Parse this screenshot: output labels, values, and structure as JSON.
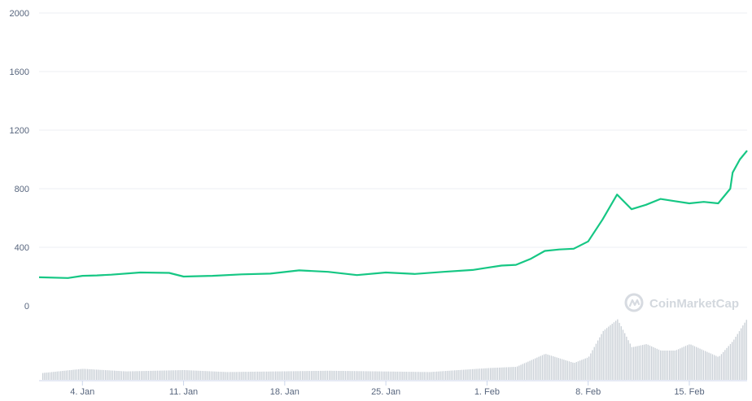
{
  "chart_data": {
    "type": "line",
    "x_unit": "date",
    "x_start": "2021-01-01",
    "x_end": "2021-02-19",
    "ylim": [
      0,
      2000
    ],
    "y_ticks": [
      "0",
      "400",
      "800",
      "1200",
      "1600",
      "2000"
    ],
    "x_ticks": [
      "4. Jan",
      "11. Jan",
      "18. Jan",
      "25. Jan",
      "1. Feb",
      "8. Feb",
      "15. Feb"
    ],
    "grid": true,
    "line_color": "#16c784",
    "volume_color": "#c9cfd6",
    "series": [
      {
        "values": [
          {
            "x": "2021-01-01",
            "y": 195
          },
          {
            "x": "2021-01-03",
            "y": 190
          },
          {
            "x": "2021-01-04",
            "y": 205
          },
          {
            "x": "2021-01-05",
            "y": 208
          },
          {
            "x": "2021-01-06",
            "y": 213
          },
          {
            "x": "2021-01-08",
            "y": 228
          },
          {
            "x": "2021-01-10",
            "y": 225
          },
          {
            "x": "2021-01-11",
            "y": 200
          },
          {
            "x": "2021-01-13",
            "y": 205
          },
          {
            "x": "2021-01-15",
            "y": 215
          },
          {
            "x": "2021-01-17",
            "y": 220
          },
          {
            "x": "2021-01-19",
            "y": 242
          },
          {
            "x": "2021-01-21",
            "y": 232
          },
          {
            "x": "2021-01-23",
            "y": 210
          },
          {
            "x": "2021-01-25",
            "y": 228
          },
          {
            "x": "2021-01-27",
            "y": 218
          },
          {
            "x": "2021-01-29",
            "y": 232
          },
          {
            "x": "2021-01-31",
            "y": 245
          },
          {
            "x": "2021-02-01",
            "y": 260
          },
          {
            "x": "2021-02-02",
            "y": 275
          },
          {
            "x": "2021-02-03",
            "y": 280
          },
          {
            "x": "2021-02-04",
            "y": 320
          },
          {
            "x": "2021-02-05",
            "y": 375
          },
          {
            "x": "2021-02-06",
            "y": 385
          },
          {
            "x": "2021-02-07",
            "y": 390
          },
          {
            "x": "2021-02-08",
            "y": 440
          },
          {
            "x": "2021-02-09",
            "y": 590
          },
          {
            "x": "2021-02-10",
            "y": 760
          },
          {
            "x": "2021-02-11",
            "y": 660
          },
          {
            "x": "2021-02-12",
            "y": 690
          },
          {
            "x": "2021-02-13",
            "y": 730
          },
          {
            "x": "2021-02-14",
            "y": 715
          },
          {
            "x": "2021-02-15",
            "y": 700
          },
          {
            "x": "2021-02-16",
            "y": 710
          },
          {
            "x": "2021-02-17",
            "y": 700
          },
          {
            "x": "2021-02-17T20:00",
            "y": 800
          },
          {
            "x": "2021-02-18",
            "y": 910
          },
          {
            "x": "2021-02-18T12:00",
            "y": 1000
          },
          {
            "x": "2021-02-19",
            "y": 1060
          }
        ]
      }
    ],
    "volume": [
      {
        "x": "2021-01-01",
        "v": 0.1
      },
      {
        "x": "2021-01-04",
        "v": 0.17
      },
      {
        "x": "2021-01-07",
        "v": 0.13
      },
      {
        "x": "2021-01-11",
        "v": 0.15
      },
      {
        "x": "2021-01-14",
        "v": 0.12
      },
      {
        "x": "2021-01-21",
        "v": 0.14
      },
      {
        "x": "2021-01-28",
        "v": 0.12
      },
      {
        "x": "2021-02-01",
        "v": 0.18
      },
      {
        "x": "2021-02-03",
        "v": 0.2
      },
      {
        "x": "2021-02-05",
        "v": 0.4
      },
      {
        "x": "2021-02-07",
        "v": 0.26
      },
      {
        "x": "2021-02-08",
        "v": 0.35
      },
      {
        "x": "2021-02-09",
        "v": 0.75
      },
      {
        "x": "2021-02-10",
        "v": 0.93
      },
      {
        "x": "2021-02-11",
        "v": 0.5
      },
      {
        "x": "2021-02-12",
        "v": 0.55
      },
      {
        "x": "2021-02-13",
        "v": 0.45
      },
      {
        "x": "2021-02-14",
        "v": 0.45
      },
      {
        "x": "2021-02-15",
        "v": 0.55
      },
      {
        "x": "2021-02-16",
        "v": 0.45
      },
      {
        "x": "2021-02-17",
        "v": 0.35
      },
      {
        "x": "2021-02-18",
        "v": 0.6
      },
      {
        "x": "2021-02-19",
        "v": 0.95
      }
    ]
  },
  "watermark": {
    "text": "CoinMarketCap"
  }
}
